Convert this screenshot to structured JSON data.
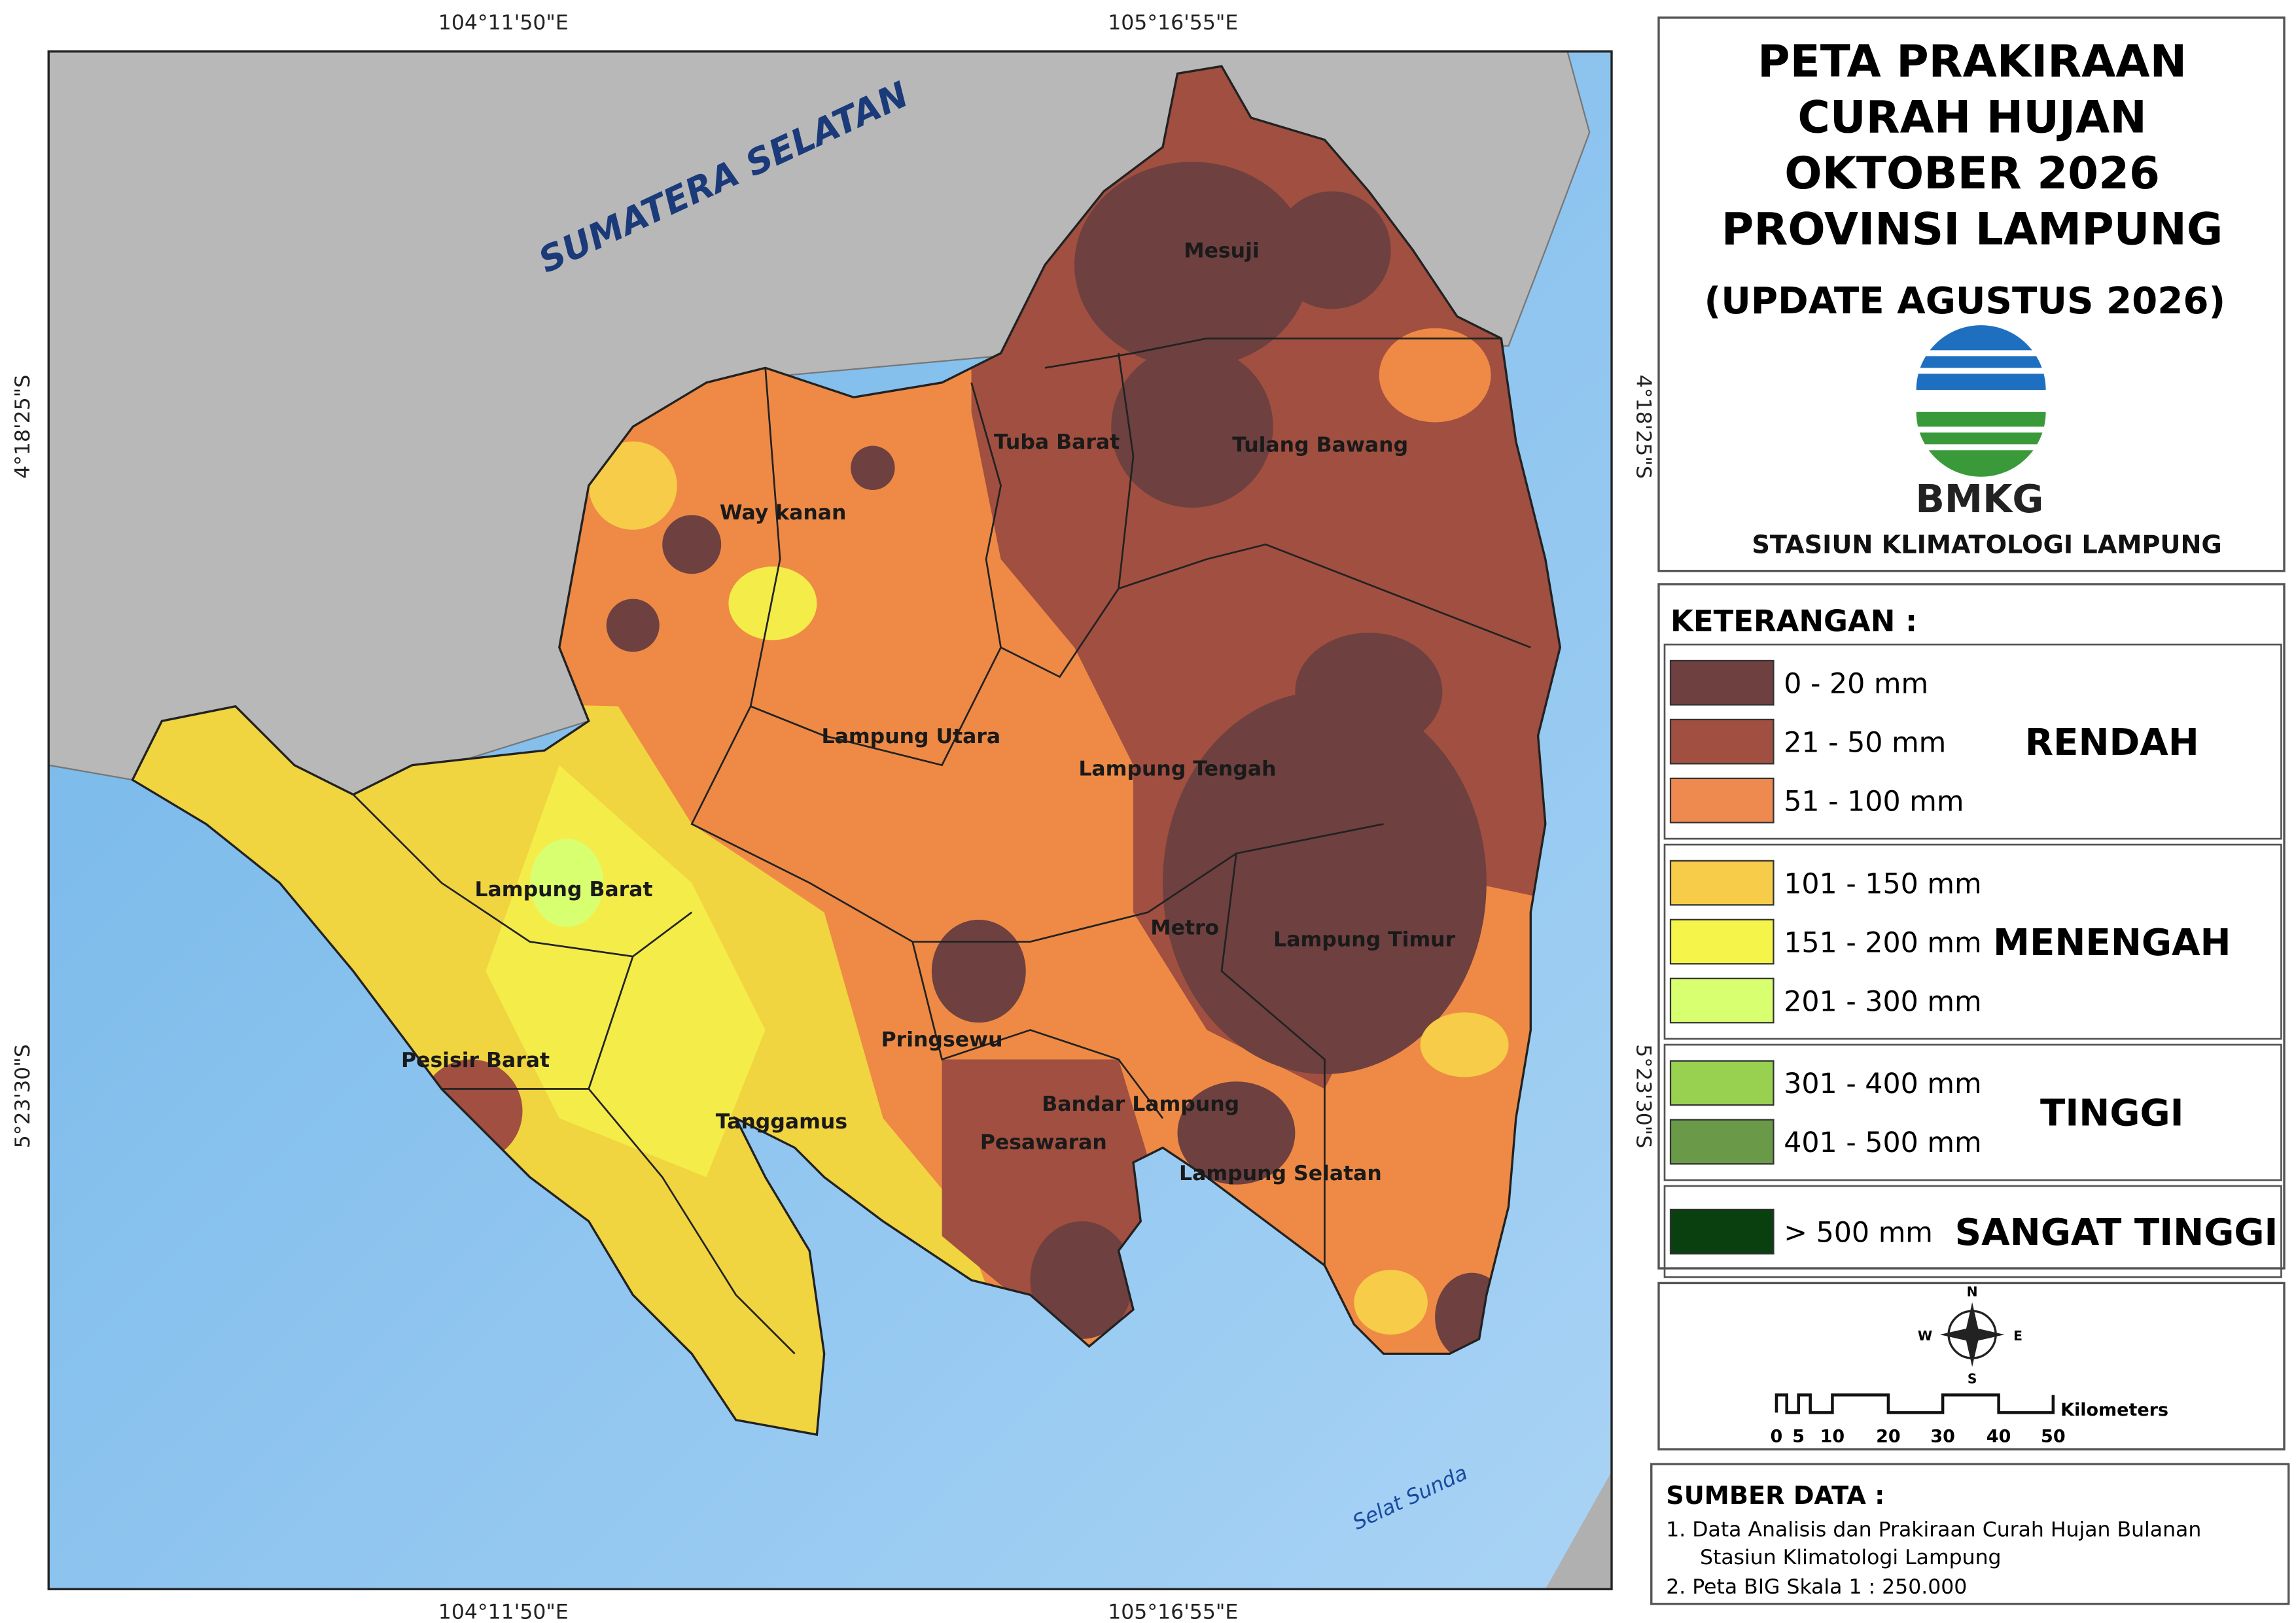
{
  "header": {
    "title_lines": [
      "PETA PRAKIRAAN",
      "CURAH HUJAN",
      "OKTOBER 2026",
      "PROVINSI LAMPUNG"
    ],
    "update": "(UPDATE AGUSTUS 2026)",
    "logo_text": "BMKG",
    "station": "STASIUN  KLIMATOLOGI  LAMPUNG"
  },
  "map": {
    "coordinates": {
      "top": [
        "104°11'50\"E",
        "105°16'55\"E"
      ],
      "bottom": [
        "104°11'50\"E",
        "105°16'55\"E"
      ],
      "left": [
        "4°18'25\"S",
        "5°23'30\"S"
      ],
      "right": [
        "4°18'25\"S",
        "5°23'30\"S"
      ]
    },
    "neighbor_label": "SUMATERA  SELATAN",
    "sea_label": "Selat  Sunda",
    "region_labels": [
      "Mesuji",
      "Tuba Barat",
      "Tulang Bawang",
      "Way kanan",
      "Lampung Utara",
      "Lampung Tengah",
      "Lampung Barat",
      "Metro",
      "Lampung Timur",
      "Pringsewu",
      "Pesisir Barat",
      "Bandar Lampung",
      "Tanggamus",
      "Pesawaran",
      "Lampung Selatan"
    ]
  },
  "legend": {
    "title": "KETERANGAN :",
    "groups": [
      {
        "label": "RENDAH",
        "items": [
          {
            "label": "0 - 20  mm",
            "color": "#6e4040"
          },
          {
            "label": "21 - 50  mm",
            "color": "#a04f40"
          },
          {
            "label": "51 - 100  mm",
            "color": "#ee8a50"
          }
        ]
      },
      {
        "label": "MENENGAH",
        "items": [
          {
            "label": "101 - 150  mm",
            "color": "#f6cc48"
          },
          {
            "label": "151 - 200  mm",
            "color": "#f4f44a"
          },
          {
            "label": "201 - 300  mm",
            "color": "#d8ff70"
          }
        ]
      },
      {
        "label": "TINGGI",
        "items": [
          {
            "label": "301 - 400  mm",
            "color": "#98d050"
          },
          {
            "label": "401 - 500  mm",
            "color": "#6a9a48"
          }
        ]
      },
      {
        "label": "SANGAT TINGGI",
        "items": [
          {
            "label": "> 500  mm",
            "color": "#0a4010"
          }
        ]
      }
    ]
  },
  "compass": {
    "n": "N",
    "s": "S",
    "e": "E",
    "w": "W"
  },
  "scale": {
    "unit": "Kilometers",
    "ticks": [
      "0",
      "5",
      "10",
      "20",
      "30",
      "40",
      "50"
    ]
  },
  "source": {
    "title": "SUMBER DATA :",
    "lines": [
      "1. Data Analisis dan Prakiraan Curah Hujan Bulanan",
      "Stasiun Klimatologi Lampung",
      "2. Peta BIG Skala 1 : 250.000"
    ]
  }
}
